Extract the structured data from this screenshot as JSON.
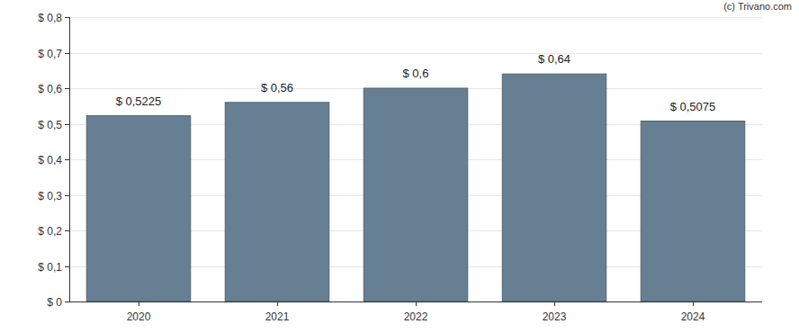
{
  "chart_data": {
    "type": "bar",
    "annotations": [
      "(c) Trivano.com"
    ],
    "categories": [
      "2020",
      "2021",
      "2022",
      "2023",
      "2024"
    ],
    "values": [
      0.5225,
      0.56,
      0.6,
      0.64,
      0.5075
    ],
    "value_labels": [
      "$ 0,5225",
      "$ 0,56",
      "$ 0,6",
      "$ 0,64",
      "$ 0,5075"
    ],
    "color": "#667f93",
    "ylim": [
      0,
      0.8
    ],
    "yticks": [
      {
        "value": 0,
        "label": "$ 0"
      },
      {
        "value": 0.1,
        "label": "$ 0,1"
      },
      {
        "value": 0.2,
        "label": "$ 0,2"
      },
      {
        "value": 0.3,
        "label": "$ 0,3"
      },
      {
        "value": 0.4,
        "label": "$ 0,4"
      },
      {
        "value": 0.5,
        "label": "$ 0,5"
      },
      {
        "value": 0.6,
        "label": "$ 0,6"
      },
      {
        "value": 0.7,
        "label": "$ 0,7"
      },
      {
        "value": 0.8,
        "label": "$ 0,8"
      }
    ],
    "grid": true,
    "data_labels": true
  }
}
